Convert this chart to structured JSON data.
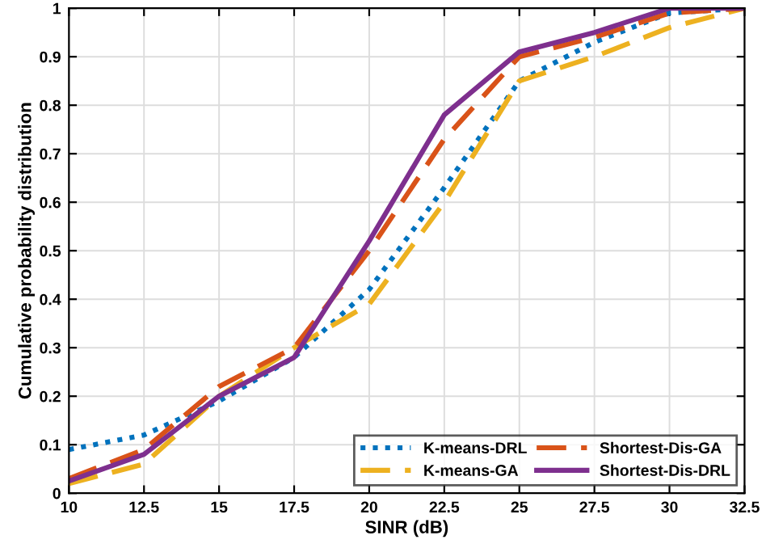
{
  "chart_data": {
    "type": "line",
    "xlabel": "SINR (dB)",
    "ylabel": "Cumulative probability distribution",
    "x": [
      10,
      12.5,
      15,
      17.5,
      20,
      22.5,
      25,
      27.5,
      30,
      32.5
    ],
    "series": [
      {
        "name": "K-means-DRL",
        "color": "#0072bd",
        "line_style": "dotted",
        "values": [
          0.09,
          0.12,
          0.19,
          0.28,
          0.42,
          0.63,
          0.85,
          0.93,
          0.99,
          1.0
        ]
      },
      {
        "name": "K-means-GA",
        "color": "#edb120",
        "line_style": "dashed",
        "values": [
          0.02,
          0.06,
          0.2,
          0.3,
          0.39,
          0.6,
          0.85,
          0.9,
          0.96,
          1.0
        ]
      },
      {
        "name": "Shortest-Dis-GA",
        "color": "#d95319",
        "line_style": "dashed",
        "values": [
          0.03,
          0.09,
          0.22,
          0.3,
          0.5,
          0.73,
          0.9,
          0.94,
          0.99,
          1.0
        ]
      },
      {
        "name": "Shortest-Dis-DRL",
        "color": "#7e2f8e",
        "line_style": "solid",
        "values": [
          0.025,
          0.08,
          0.2,
          0.28,
          0.52,
          0.78,
          0.91,
          0.95,
          1.0,
          1.0
        ]
      }
    ],
    "xlim": [
      10,
      32.5
    ],
    "xticks": [
      10,
      12.5,
      15,
      17.5,
      20,
      22.5,
      25,
      27.5,
      30,
      32.5
    ],
    "ylim": [
      0,
      1
    ],
    "yticks": [
      0,
      0.1,
      0.2,
      0.3,
      0.4,
      0.5,
      0.6,
      0.7,
      0.8,
      0.9,
      1
    ],
    "grid": true,
    "legend": "bottom right",
    "marker": "none"
  }
}
